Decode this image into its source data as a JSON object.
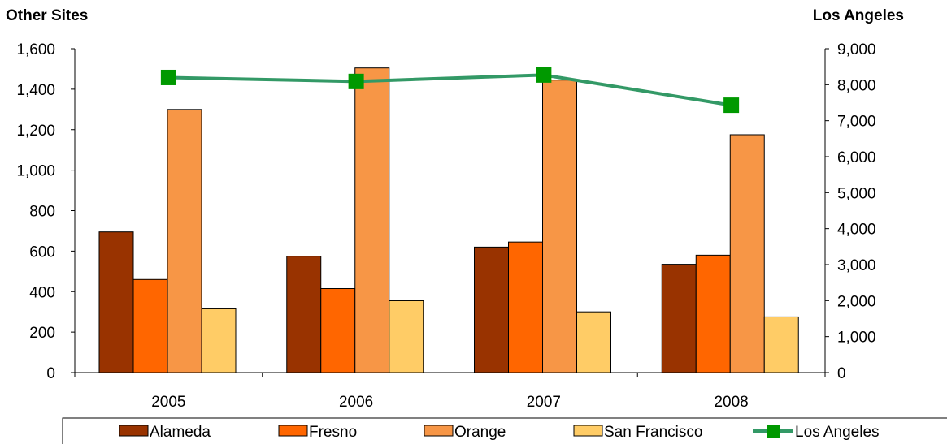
{
  "chart_data": {
    "type": "bar",
    "categories": [
      "2005",
      "2006",
      "2007",
      "2008"
    ],
    "left_axis": {
      "title": "Other Sites",
      "ylim": [
        0,
        1600
      ],
      "ticks": [
        0,
        200,
        400,
        600,
        800,
        1000,
        1200,
        1400,
        1600
      ],
      "tick_labels": [
        "0",
        "200",
        "400",
        "600",
        "800",
        "1,000",
        "1,200",
        "1,400",
        "1,600"
      ]
    },
    "right_axis": {
      "title": "Los Angeles",
      "ylim": [
        0,
        9000
      ],
      "ticks": [
        0,
        1000,
        2000,
        3000,
        4000,
        5000,
        6000,
        7000,
        8000,
        9000
      ],
      "tick_labels": [
        "0",
        "1,000",
        "2,000",
        "3,000",
        "4,000",
        "5,000",
        "6,000",
        "7,000",
        "8,000",
        "9,000"
      ]
    },
    "series": [
      {
        "name": "Alameda",
        "type": "bar",
        "axis": "left",
        "color": "#993300",
        "values": [
          695,
          575,
          620,
          535
        ]
      },
      {
        "name": "Fresno",
        "type": "bar",
        "axis": "left",
        "color": "#FF6600",
        "values": [
          460,
          415,
          645,
          580
        ]
      },
      {
        "name": "Orange",
        "type": "bar",
        "axis": "left",
        "color": "#F79646",
        "values": [
          1300,
          1505,
          1445,
          1175
        ]
      },
      {
        "name": "San Francisco",
        "type": "bar",
        "axis": "left",
        "color": "#FFCC66",
        "values": [
          315,
          355,
          300,
          275
        ]
      },
      {
        "name": "Los Angeles",
        "type": "line",
        "axis": "right",
        "color": "#339966",
        "marker_color": "#009900",
        "values": [
          8200,
          8090,
          8270,
          7430
        ]
      }
    ],
    "grid": false,
    "legend_position": "bottom"
  }
}
